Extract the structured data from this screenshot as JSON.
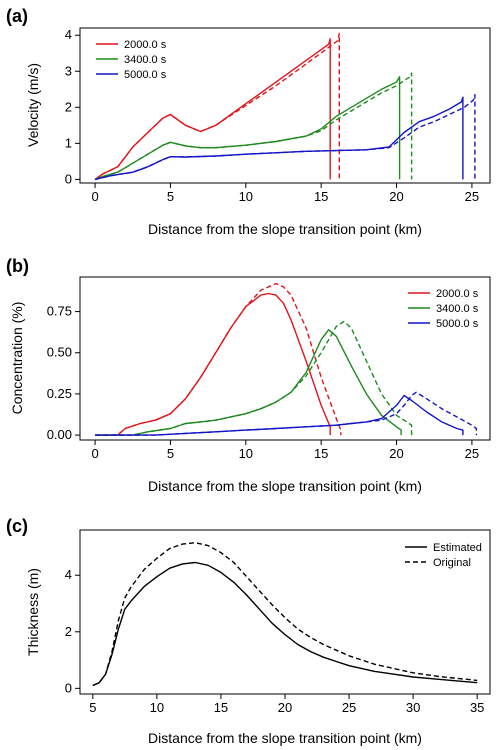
{
  "figure": {
    "panels": [
      "(a)",
      "(b)",
      "(c)"
    ]
  },
  "chart_data": [
    {
      "panel": "(a)",
      "type": "line",
      "xlabel": "Distance from the slope transition point (km)",
      "ylabel": "Velocity (m/s)",
      "xlim": [
        -1,
        26.2
      ],
      "ylim": [
        -0.1,
        4.2
      ],
      "xticks": [
        0,
        5,
        10,
        15,
        20,
        25
      ],
      "yticks": [
        0,
        1,
        2,
        3,
        4
      ],
      "grid": false,
      "legend_placement": "top-left",
      "legend": [
        "2000.0 s",
        "3400.0 s",
        "5000.0 s"
      ],
      "series": [
        {
          "name": "2000.0 s",
          "color": "#e3141b",
          "dash": "solid",
          "x": [
            0,
            0.5,
            1.5,
            2.5,
            3.5,
            4.5,
            5.0,
            6.0,
            7.0,
            8.0,
            10.0,
            12.0,
            14.0,
            15.5,
            15.6,
            15.6
          ],
          "y": [
            0.0,
            0.15,
            0.35,
            0.9,
            1.3,
            1.7,
            1.8,
            1.5,
            1.33,
            1.5,
            2.1,
            2.7,
            3.3,
            3.75,
            3.9,
            0.0
          ]
        },
        {
          "name": "2000.0 s",
          "color": "#e3141b",
          "dash": "dashed",
          "x": [
            0,
            0.5,
            1.5,
            2.5,
            3.5,
            4.5,
            5.0,
            6.0,
            7.0,
            8.0,
            10.0,
            12.0,
            14.0,
            16.1,
            16.2,
            16.2
          ],
          "y": [
            0.0,
            0.15,
            0.35,
            0.9,
            1.3,
            1.7,
            1.8,
            1.5,
            1.33,
            1.5,
            2.05,
            2.6,
            3.2,
            3.85,
            4.05,
            0.0
          ]
        },
        {
          "name": "3400.0 s",
          "color": "#1f8a1f",
          "dash": "solid",
          "x": [
            0,
            0.5,
            1.5,
            2.5,
            3.5,
            4.5,
            5.0,
            6.0,
            7.0,
            8.0,
            10.0,
            12.0,
            14.0,
            15.0,
            16.0,
            17.0,
            18.0,
            19.0,
            20.0,
            20.2,
            20.2
          ],
          "y": [
            0.0,
            0.08,
            0.2,
            0.45,
            0.7,
            0.95,
            1.03,
            0.93,
            0.88,
            0.88,
            0.95,
            1.05,
            1.2,
            1.4,
            1.75,
            2.0,
            2.25,
            2.5,
            2.7,
            2.85,
            0.0
          ]
        },
        {
          "name": "3400.0 s",
          "color": "#1f8a1f",
          "dash": "dashed",
          "x": [
            0,
            0.5,
            1.5,
            2.5,
            3.5,
            4.5,
            5.0,
            6.0,
            7.0,
            8.0,
            10.0,
            12.0,
            14.0,
            15.0,
            16.0,
            17.0,
            18.0,
            19.0,
            20.0,
            20.9,
            21.0,
            21.0
          ],
          "y": [
            0.0,
            0.08,
            0.2,
            0.45,
            0.7,
            0.95,
            1.03,
            0.93,
            0.88,
            0.88,
            0.95,
            1.05,
            1.2,
            1.35,
            1.65,
            1.9,
            2.15,
            2.4,
            2.6,
            2.85,
            2.95,
            0.0
          ]
        },
        {
          "name": "5000.0 s",
          "color": "#1414c8",
          "dash": "solid",
          "x": [
            0,
            1.0,
            2.5,
            3.5,
            4.5,
            5.0,
            6.0,
            8.0,
            10.0,
            14.0,
            18.0,
            19.5,
            20.5,
            21.5,
            22.5,
            23.5,
            24.3,
            24.4,
            24.4
          ],
          "y": [
            0.0,
            0.1,
            0.2,
            0.35,
            0.55,
            0.63,
            0.62,
            0.65,
            0.7,
            0.78,
            0.82,
            0.9,
            1.3,
            1.6,
            1.75,
            1.95,
            2.15,
            2.28,
            0.0
          ]
        },
        {
          "name": "5000.0 s",
          "color": "#1414c8",
          "dash": "dashed",
          "x": [
            0,
            1.0,
            2.5,
            3.5,
            4.5,
            5.0,
            6.0,
            8.0,
            10.0,
            14.0,
            18.0,
            19.5,
            20.5,
            21.5,
            22.5,
            23.5,
            24.5,
            25.1,
            25.2,
            25.2
          ],
          "y": [
            0.0,
            0.1,
            0.2,
            0.35,
            0.55,
            0.63,
            0.62,
            0.65,
            0.7,
            0.78,
            0.82,
            0.88,
            1.15,
            1.45,
            1.6,
            1.8,
            2.0,
            2.2,
            2.35,
            0.0
          ]
        }
      ]
    },
    {
      "panel": "(b)",
      "type": "line",
      "xlabel": "Distance from the slope transition point (km)",
      "ylabel": "Concentration (%)",
      "xlim": [
        -1,
        26.2
      ],
      "ylim": [
        -0.03,
        0.96
      ],
      "xticks": [
        0,
        5,
        10,
        15,
        20,
        25
      ],
      "yticks": [
        0.0,
        0.25,
        0.5,
        0.75
      ],
      "ytick_labels": [
        "0.00",
        "0.25",
        "0.50",
        "0.75"
      ],
      "grid": false,
      "legend_placement": "top-right",
      "legend": [
        "2000.0 s",
        "3400.0 s",
        "5000.0 s"
      ],
      "series": [
        {
          "name": "2000.0 s",
          "color": "#e3141b",
          "dash": "solid",
          "x": [
            0,
            1.5,
            2.0,
            3.0,
            4.0,
            5.0,
            6.0,
            7.0,
            8.0,
            9.0,
            10.0,
            11.0,
            11.5,
            12.0,
            12.5,
            13.0,
            14.0,
            15.0,
            15.6,
            15.6
          ],
          "y": [
            0.0,
            0.0,
            0.04,
            0.07,
            0.09,
            0.13,
            0.22,
            0.35,
            0.5,
            0.65,
            0.78,
            0.85,
            0.86,
            0.85,
            0.8,
            0.7,
            0.45,
            0.18,
            0.05,
            0.0
          ]
        },
        {
          "name": "2000.0 s",
          "color": "#e3141b",
          "dash": "dashed",
          "x": [
            0,
            1.5,
            2.0,
            3.0,
            4.0,
            5.0,
            6.0,
            7.0,
            8.0,
            9.0,
            10.0,
            11.0,
            12.0,
            12.5,
            13.0,
            14.0,
            15.0,
            16.0,
            16.3,
            16.3
          ],
          "y": [
            0.0,
            0.0,
            0.04,
            0.07,
            0.09,
            0.13,
            0.22,
            0.35,
            0.5,
            0.65,
            0.78,
            0.88,
            0.92,
            0.9,
            0.85,
            0.65,
            0.35,
            0.1,
            0.03,
            0.0
          ]
        },
        {
          "name": "3400.0 s",
          "color": "#1f8a1f",
          "dash": "solid",
          "x": [
            0,
            2.5,
            3.5,
            5.0,
            6.0,
            7.0,
            8.0,
            9.0,
            10.0,
            11.0,
            12.0,
            13.0,
            14.0,
            15.0,
            15.5,
            16.0,
            17.0,
            18.0,
            19.0,
            20.0,
            20.3,
            20.3
          ],
          "y": [
            0.0,
            0.0,
            0.02,
            0.04,
            0.07,
            0.08,
            0.09,
            0.11,
            0.13,
            0.16,
            0.2,
            0.26,
            0.38,
            0.58,
            0.64,
            0.6,
            0.42,
            0.25,
            0.12,
            0.05,
            0.03,
            0.0
          ]
        },
        {
          "name": "3400.0 s",
          "color": "#1f8a1f",
          "dash": "dashed",
          "x": [
            0,
            2.5,
            3.5,
            5.0,
            6.0,
            7.0,
            8.0,
            9.0,
            10.0,
            11.0,
            12.0,
            13.0,
            14.0,
            15.0,
            16.0,
            16.5,
            17.0,
            18.0,
            19.0,
            20.0,
            21.0,
            21.0
          ],
          "y": [
            0.0,
            0.0,
            0.02,
            0.04,
            0.07,
            0.08,
            0.09,
            0.11,
            0.13,
            0.16,
            0.2,
            0.26,
            0.36,
            0.5,
            0.66,
            0.69,
            0.65,
            0.45,
            0.25,
            0.12,
            0.06,
            0.0
          ]
        },
        {
          "name": "5000.0 s",
          "color": "#1414c8",
          "dash": "solid",
          "x": [
            0,
            4.0,
            6.0,
            8.0,
            10.0,
            12.0,
            14.0,
            16.0,
            17.0,
            18.0,
            19.0,
            20.0,
            20.5,
            21.0,
            22.0,
            23.0,
            24.0,
            24.4,
            24.4
          ],
          "y": [
            0.0,
            0.0,
            0.01,
            0.02,
            0.03,
            0.04,
            0.05,
            0.06,
            0.07,
            0.08,
            0.1,
            0.18,
            0.24,
            0.21,
            0.14,
            0.08,
            0.04,
            0.03,
            0.0
          ]
        },
        {
          "name": "5000.0 s",
          "color": "#1414c8",
          "dash": "dashed",
          "x": [
            0,
            4.0,
            6.0,
            8.0,
            10.0,
            12.0,
            14.0,
            16.0,
            17.0,
            18.0,
            19.0,
            20.0,
            20.5,
            21.0,
            21.3,
            22.0,
            23.0,
            24.0,
            25.0,
            25.3,
            25.3
          ],
          "y": [
            0.0,
            0.0,
            0.01,
            0.02,
            0.03,
            0.04,
            0.05,
            0.06,
            0.07,
            0.08,
            0.09,
            0.13,
            0.18,
            0.24,
            0.26,
            0.22,
            0.16,
            0.11,
            0.06,
            0.04,
            0.0
          ]
        }
      ]
    },
    {
      "panel": "(c)",
      "type": "line",
      "xlabel": "Distance from the slope transition point (km)",
      "ylabel": "Thickness (m)",
      "xlim": [
        4.0,
        36.0
      ],
      "ylim": [
        -0.2,
        5.6
      ],
      "xticks": [
        5,
        10,
        15,
        20,
        25,
        30,
        35
      ],
      "yticks": [
        0,
        2,
        4
      ],
      "grid": false,
      "legend_placement": "top-right",
      "legend": [
        "Estimated",
        "Original"
      ],
      "series": [
        {
          "name": "Estimated",
          "color": "#000000",
          "dash": "solid",
          "x": [
            5.0,
            5.5,
            6.0,
            6.5,
            7.0,
            7.5,
            8.0,
            9.0,
            10.0,
            11.0,
            12.0,
            13.0,
            14.0,
            15.0,
            16.0,
            17.0,
            18.0,
            19.0,
            20.0,
            21.0,
            22.0,
            23.0,
            24.0,
            25.0,
            27.0,
            30.0,
            32.0,
            35.0
          ],
          "y": [
            0.1,
            0.2,
            0.5,
            1.2,
            2.1,
            2.8,
            3.1,
            3.6,
            3.95,
            4.25,
            4.4,
            4.45,
            4.35,
            4.1,
            3.75,
            3.3,
            2.8,
            2.3,
            1.9,
            1.55,
            1.3,
            1.1,
            0.95,
            0.8,
            0.6,
            0.4,
            0.32,
            0.2
          ]
        },
        {
          "name": "Original",
          "color": "#000000",
          "dash": "dashed",
          "x": [
            5.0,
            5.5,
            6.0,
            6.5,
            7.0,
            7.5,
            8.0,
            9.0,
            10.0,
            11.0,
            12.0,
            13.0,
            14.0,
            15.0,
            16.0,
            17.0,
            18.0,
            19.0,
            20.0,
            21.0,
            22.0,
            23.0,
            24.0,
            25.0,
            27.0,
            30.0,
            32.0,
            35.0
          ],
          "y": [
            0.1,
            0.2,
            0.5,
            1.3,
            2.4,
            3.2,
            3.6,
            4.2,
            4.6,
            4.95,
            5.1,
            5.15,
            5.05,
            4.8,
            4.45,
            3.95,
            3.45,
            2.95,
            2.5,
            2.1,
            1.8,
            1.55,
            1.35,
            1.15,
            0.85,
            0.55,
            0.42,
            0.28
          ]
        }
      ]
    }
  ]
}
